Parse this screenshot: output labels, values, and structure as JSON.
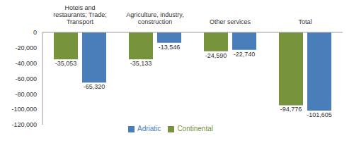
{
  "chart_data": {
    "type": "bar",
    "categories": [
      "Hotels and restaurants; Trade; Transport",
      "Agriculture, industry, construction",
      "Other services",
      "Total"
    ],
    "series": [
      {
        "name": "Continental",
        "color": "#77933c",
        "values": [
          -35053,
          -35133,
          -24590,
          -94776
        ],
        "value_labels": [
          "-35,053",
          "-35,133",
          "-24,590",
          "-94,776"
        ]
      },
      {
        "name": "Adriatic",
        "color": "#4a7ebb",
        "values": [
          -65320,
          -13546,
          -22740,
          -101605
        ],
        "value_labels": [
          "-65,320",
          "-13,546",
          "-22,740",
          "-101,605"
        ]
      }
    ],
    "ylim": [
      -120000,
      0
    ],
    "yticks": [
      0,
      {
        "value": -20000,
        "label": "-20,000"
      },
      {
        "value": -40000,
        "label": "-40,000"
      },
      {
        "value": -60000,
        "label": "-60,000"
      },
      {
        "value": -80000,
        "label": "-80,000"
      },
      {
        "value": -100000,
        "label": "-100,000"
      },
      {
        "value": -120000,
        "label": "-120,000"
      }
    ],
    "grid": false,
    "legend": "bottom",
    "data_labels": true
  }
}
